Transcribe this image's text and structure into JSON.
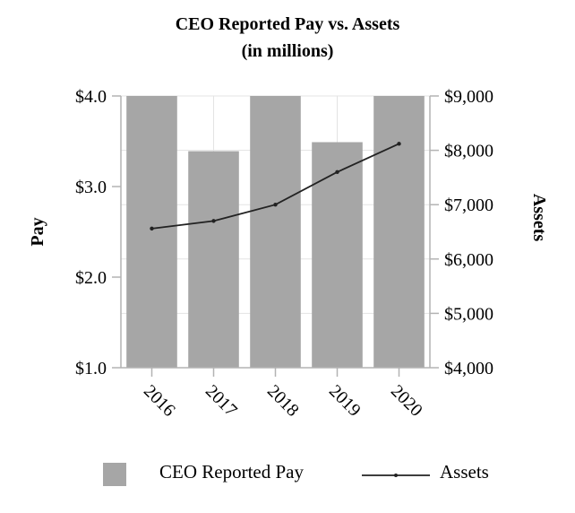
{
  "chart_data": {
    "type": "bar",
    "title": "CEO Reported Pay vs. Assets",
    "subtitle": "(in millions)",
    "categories": [
      "2016",
      "2017",
      "2018",
      "2019",
      "2020"
    ],
    "series": [
      {
        "name": "CEO Reported Pay",
        "type": "bar",
        "axis": "left",
        "values": [
          4.0,
          3.39,
          4.0,
          3.49,
          4.0
        ]
      },
      {
        "name": "Assets",
        "type": "line",
        "axis": "right",
        "values": [
          6560,
          6700,
          7000,
          7600,
          8120
        ]
      }
    ],
    "ylabel": "Pay",
    "y2label": "Assets",
    "ylim": [
      1.0,
      4.0
    ],
    "y2lim": [
      4000,
      9000
    ],
    "yticks": [
      "$1.0",
      "$2.0",
      "$3.0",
      "$4.0"
    ],
    "y2ticks": [
      "$4,000",
      "$5,000",
      "$6,000",
      "$7,000",
      "$8,000",
      "$9,000"
    ],
    "grid": true,
    "legend_position": "bottom",
    "colors": {
      "bar": "#a6a6a6",
      "line": "#222222",
      "grid": "#e3e3e3",
      "axis": "#b3b3b3"
    }
  }
}
